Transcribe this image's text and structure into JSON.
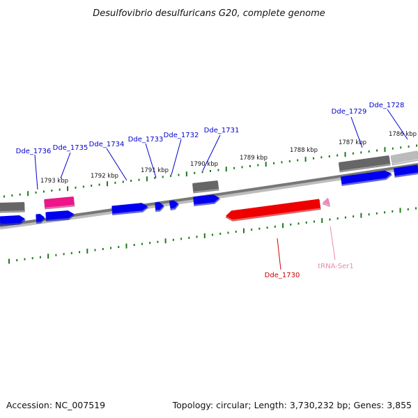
{
  "title": "Desulfovibrio desulfuricans G20, complete genome",
  "footer": {
    "accession": "Accession: NC_007519",
    "summary": "Topology: circular; Length: 3,730,232 bp; Genes: 3,855"
  },
  "colors": {
    "cds": "#0000ee",
    "rna": "#ee1589",
    "pseudo": "#666666",
    "pseudo_light": "#bbbbbb",
    "highlight": "#ee0000",
    "trna": "#ee88bb",
    "tick": "#1a7a1a",
    "backbone": "#777777",
    "label_blue": "#0000cc",
    "label_red": "#cc0000",
    "label_pink": "#ee88aa"
  },
  "scale": {
    "labels": [
      "1793 kbp",
      "1792 kbp",
      "1791 kbp",
      "1790 kbp",
      "1789 kbp",
      "1788 kbp",
      "1787 kbp",
      "1786 kbp"
    ]
  },
  "gene_labels": [
    {
      "text": "Dde_1736",
      "kind": "cds"
    },
    {
      "text": "Dde_1735",
      "kind": "cds"
    },
    {
      "text": "Dde_1734",
      "kind": "cds"
    },
    {
      "text": "Dde_1733",
      "kind": "cds"
    },
    {
      "text": "Dde_1732",
      "kind": "cds"
    },
    {
      "text": "Dde_1731",
      "kind": "cds"
    },
    {
      "text": "Dde_1729",
      "kind": "cds"
    },
    {
      "text": "Dde_1728",
      "kind": "cds"
    },
    {
      "text": "Dde_1730",
      "kind": "highlight"
    },
    {
      "text": "tRNA-Ser1",
      "kind": "trna"
    }
  ]
}
